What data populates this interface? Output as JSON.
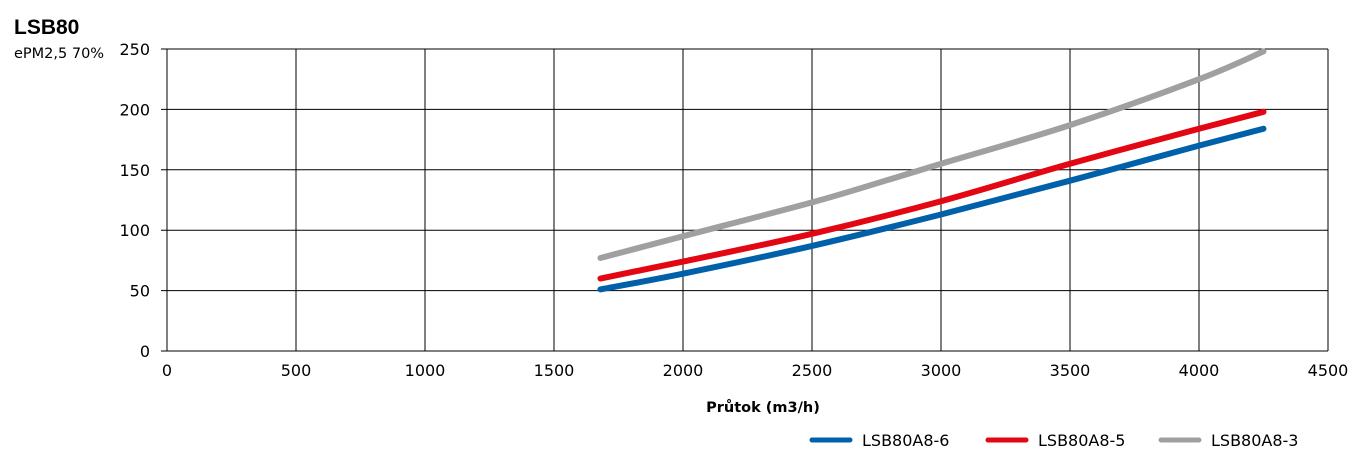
{
  "chart_data": {
    "type": "line",
    "title": "LSB80",
    "subtitle": "ePM2,5 70%",
    "xlabel": "Průtok (m3/h)",
    "ylabel": "",
    "xlim": [
      0,
      4500
    ],
    "ylim": [
      0,
      250
    ],
    "xticks": [
      0,
      500,
      1000,
      1500,
      2000,
      2500,
      3000,
      3500,
      4000,
      4500
    ],
    "yticks": [
      0,
      50,
      100,
      150,
      200,
      250
    ],
    "grid": true,
    "legend_position": "bottom-right",
    "series": [
      {
        "name": "LSB80A8-6",
        "color": "#0061AA",
        "x": [
          1680,
          2000,
          2500,
          3000,
          3500,
          4000,
          4250
        ],
        "y": [
          51,
          64,
          87,
          113,
          141,
          170,
          184
        ]
      },
      {
        "name": "LSB80A8-5",
        "color": "#E30613",
        "x": [
          1680,
          2000,
          2500,
          3000,
          3500,
          4000,
          4250
        ],
        "y": [
          60,
          74,
          97,
          124,
          155,
          184,
          198
        ]
      },
      {
        "name": "LSB80A8-3",
        "color": "#A0A0A0",
        "x": [
          1680,
          2000,
          2500,
          2800,
          3000,
          3500,
          4000,
          4250
        ],
        "y": [
          77,
          95,
          123,
          142,
          155,
          187,
          225,
          248
        ]
      }
    ]
  }
}
